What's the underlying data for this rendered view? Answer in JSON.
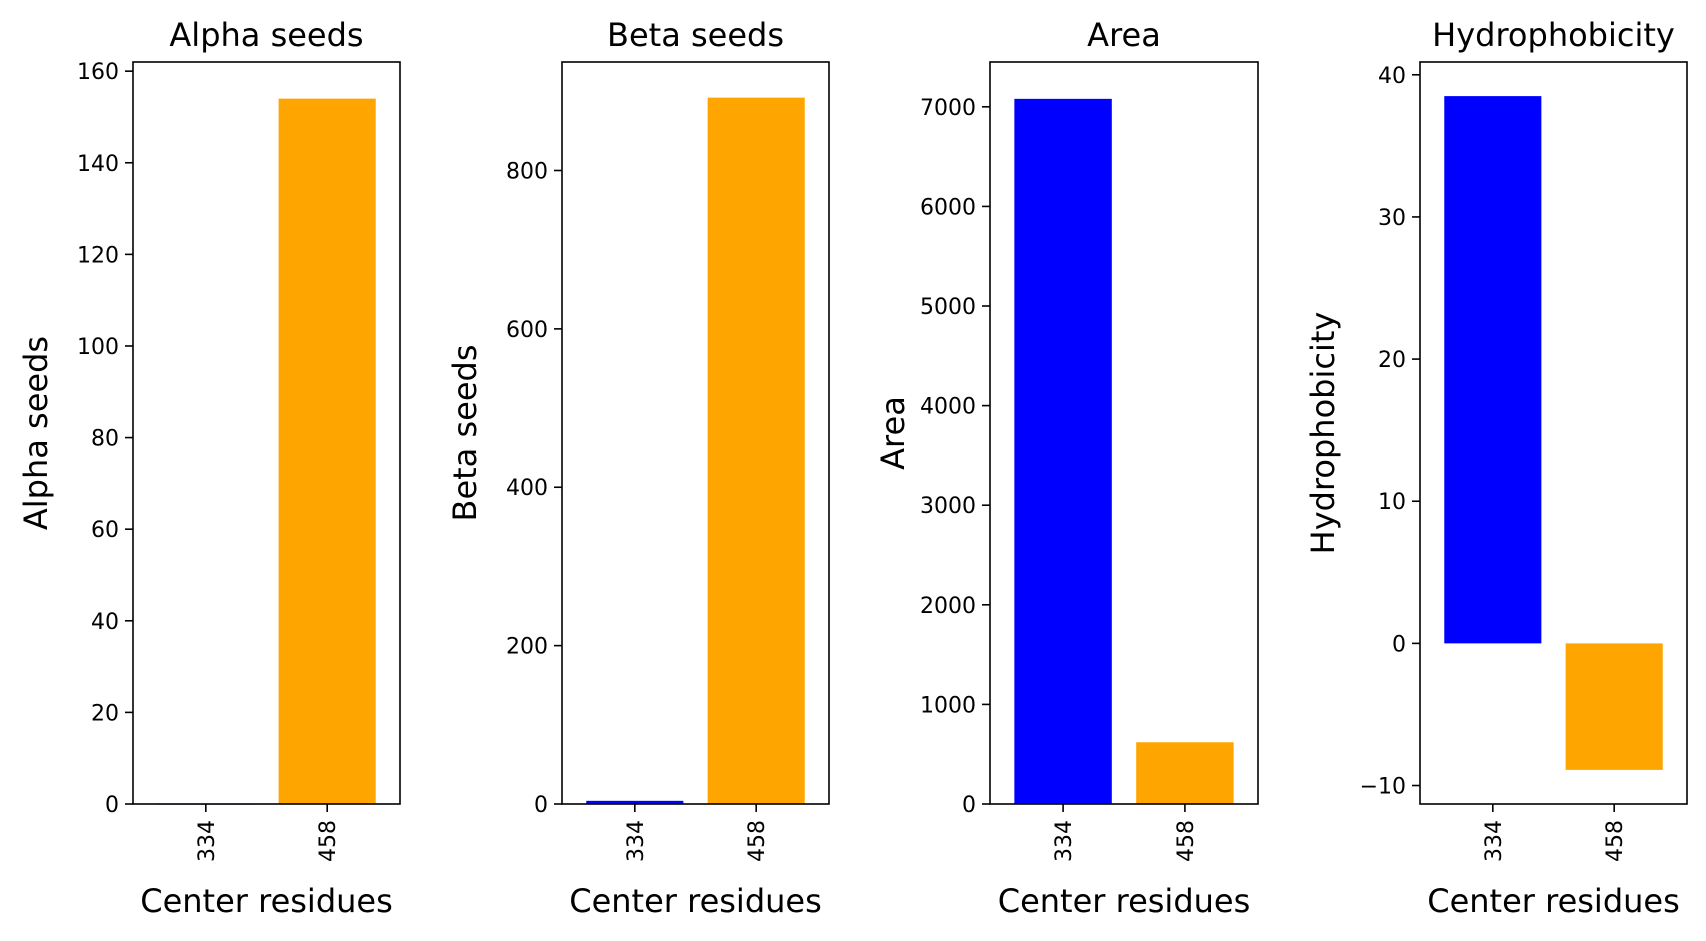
{
  "chart_data": [
    {
      "type": "bar",
      "title": "Alpha seeds",
      "xlabel": "Center residues",
      "ylabel": "Alpha seeds",
      "categories": [
        "334",
        "458"
      ],
      "values": [
        0,
        154
      ],
      "colors": [
        "#0000ff",
        "#ffa500"
      ],
      "ylim": [
        0,
        162
      ],
      "yticks": [
        0,
        20,
        40,
        60,
        80,
        100,
        120,
        140,
        160
      ],
      "ytick_labels": [
        "0",
        "20",
        "40",
        "60",
        "80",
        "100",
        "120",
        "140",
        "160"
      ],
      "grid": false,
      "legend": "none"
    },
    {
      "type": "bar",
      "title": "Beta seeds",
      "xlabel": "Center residues",
      "ylabel": "Beta seeds",
      "categories": [
        "334",
        "458"
      ],
      "values": [
        4,
        892
      ],
      "colors": [
        "#0000ff",
        "#ffa500"
      ],
      "ylim": [
        0,
        937
      ],
      "yticks": [
        0,
        200,
        400,
        600,
        800
      ],
      "ytick_labels": [
        "0",
        "200",
        "400",
        "600",
        "800"
      ],
      "grid": false,
      "legend": "none"
    },
    {
      "type": "bar",
      "title": "Area",
      "xlabel": "Center residues",
      "ylabel": "Area",
      "categories": [
        "334",
        "458"
      ],
      "values": [
        7080,
        620
      ],
      "colors": [
        "#0000ff",
        "#ffa500"
      ],
      "ylim": [
        0,
        7450
      ],
      "yticks": [
        0,
        1000,
        2000,
        3000,
        4000,
        5000,
        6000,
        7000
      ],
      "ytick_labels": [
        "0",
        "1000",
        "2000",
        "3000",
        "4000",
        "5000",
        "6000",
        "7000"
      ],
      "grid": false,
      "legend": "none"
    },
    {
      "type": "bar",
      "title": "Hydrophobicity",
      "xlabel": "Center residues",
      "ylabel": "Hydrophobicity",
      "categories": [
        "334",
        "458"
      ],
      "values": [
        38.5,
        -8.9
      ],
      "colors": [
        "#0000ff",
        "#ffa500"
      ],
      "ylim": [
        -11.3,
        40.9
      ],
      "yticks": [
        -10,
        0,
        10,
        20,
        30,
        40
      ],
      "ytick_labels": [
        "−10",
        "0",
        "10",
        "20",
        "30",
        "40"
      ],
      "grid": false,
      "legend": "none"
    }
  ]
}
